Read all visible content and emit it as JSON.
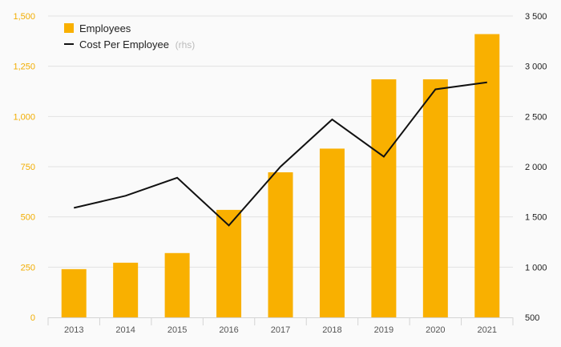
{
  "chart_data": {
    "type": "bar+line",
    "categories": [
      "2013",
      "2014",
      "2015",
      "2016",
      "2017",
      "2018",
      "2019",
      "2020",
      "2021"
    ],
    "series": [
      {
        "name": "Employees",
        "type": "bar",
        "axis": "left",
        "color": "#f9b000",
        "values": [
          240,
          272,
          320,
          535,
          722,
          840,
          1185,
          1185,
          1410
        ]
      },
      {
        "name": "Cost Per Employee",
        "name_note": "(rhs)",
        "type": "line",
        "axis": "right",
        "color": "#111111",
        "values": [
          1590,
          1710,
          1890,
          1415,
          2000,
          2470,
          2100,
          2770,
          2840
        ]
      }
    ],
    "left_axis": {
      "min": 0,
      "max": 1500,
      "ticks": [
        0,
        250,
        500,
        750,
        1000,
        1250,
        1500
      ],
      "tick_labels": [
        "0",
        "250",
        "500",
        "750",
        "1,000",
        "1,250",
        "1,500"
      ],
      "color": "#f2ad00"
    },
    "right_axis": {
      "min": 500,
      "max": 3500,
      "ticks": [
        500,
        1000,
        1500,
        2000,
        2500,
        3000,
        3500
      ],
      "tick_labels": [
        "500",
        "1 000",
        "1 500",
        "2 000",
        "2 500",
        "3 000",
        "3 500"
      ]
    },
    "grid": true,
    "legend": "top-left"
  }
}
